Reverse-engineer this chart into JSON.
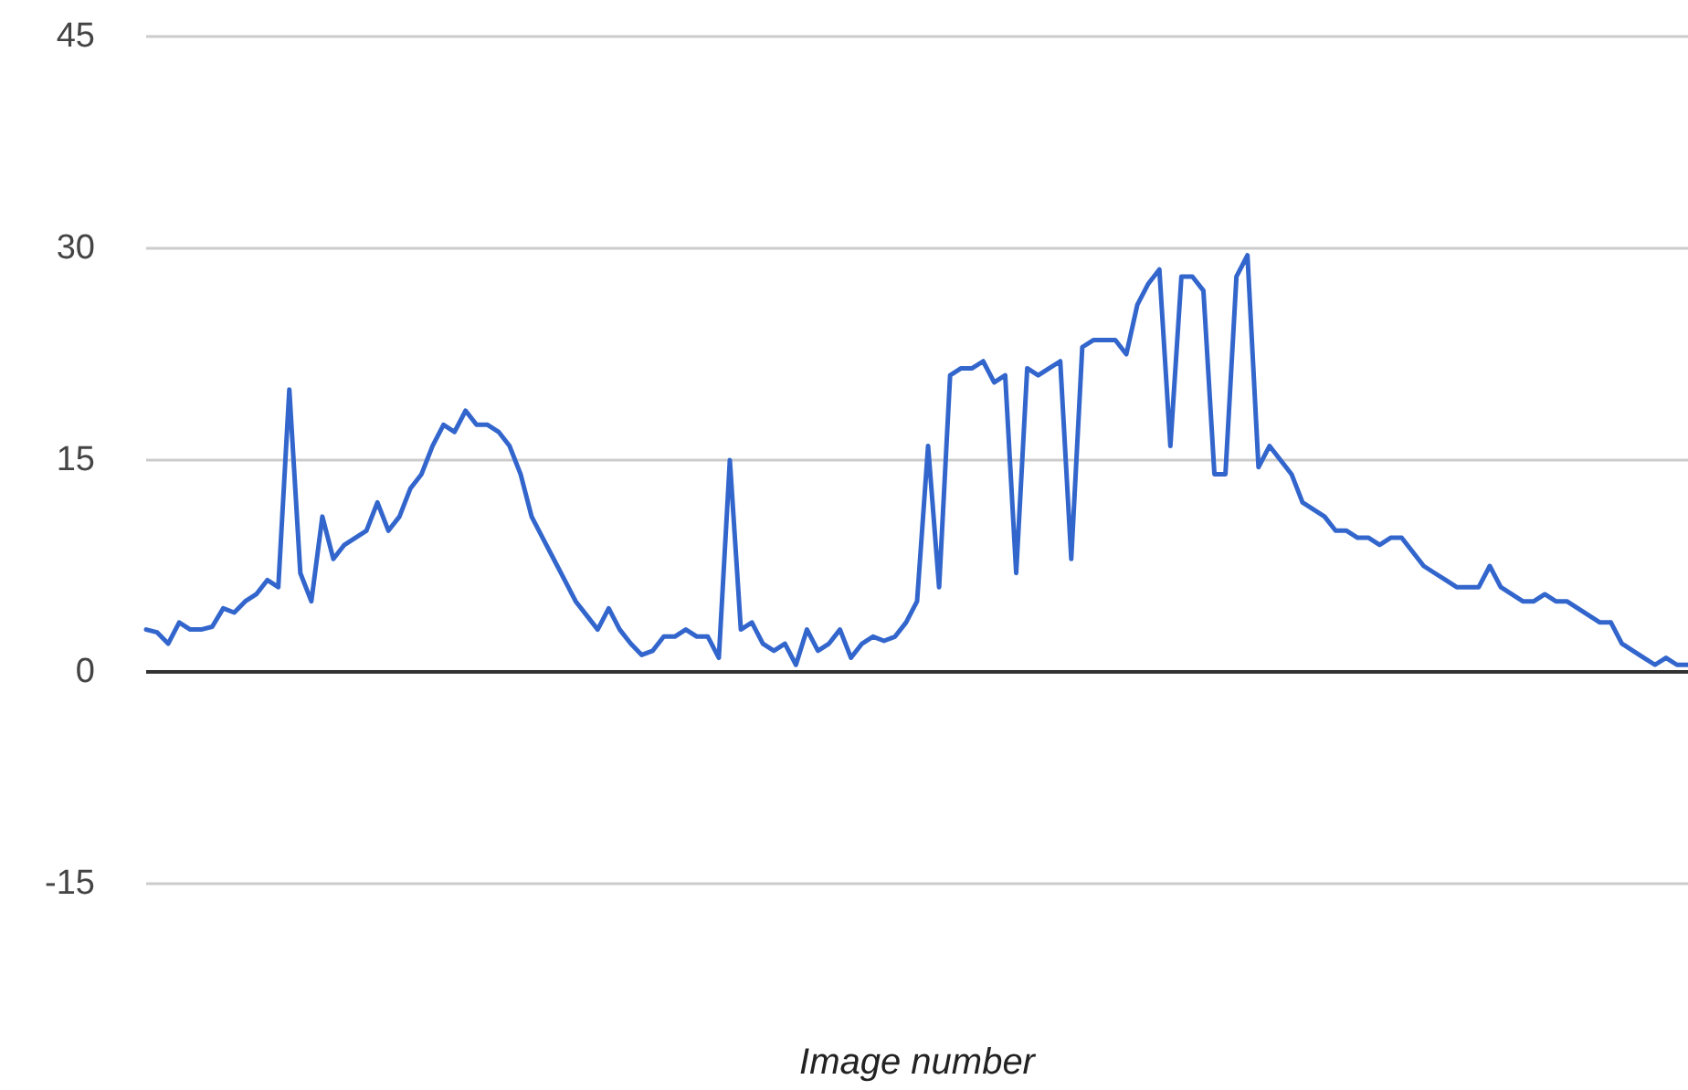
{
  "chart_data": {
    "type": "line",
    "xlabel": "Image number",
    "categories": [
      null,
      null,
      null,
      null,
      null,
      null,
      null,
      null,
      null,
      null,
      null,
      null,
      null,
      null,
      null,
      null,
      null,
      null,
      null,
      null,
      null,
      null,
      null,
      null,
      null,
      null,
      null,
      null,
      null,
      null,
      null,
      null,
      null,
      null,
      null,
      null,
      null,
      null,
      null,
      null,
      null,
      null,
      null,
      null,
      null,
      null,
      null,
      null,
      null,
      null,
      null,
      null,
      null,
      null,
      null,
      null,
      null,
      null,
      null,
      null,
      null,
      null,
      null,
      null,
      null,
      null,
      null,
      null,
      null,
      null,
      null,
      null,
      null,
      null,
      null,
      null,
      null,
      null,
      null,
      null,
      null,
      null,
      null,
      null,
      null,
      null,
      null,
      null,
      null,
      null,
      null,
      null,
      null,
      null,
      null,
      null,
      null,
      null,
      null,
      null,
      null,
      null,
      null,
      null,
      null,
      null,
      null,
      null,
      null,
      null,
      null,
      null,
      null,
      null,
      null,
      null,
      null,
      null,
      null,
      null,
      null,
      null,
      null,
      null,
      null,
      null,
      null,
      null,
      null,
      null,
      null,
      null,
      null,
      null,
      null,
      null,
      null,
      null,
      null,
      null,
      null
    ],
    "series": [
      {
        "color": "#3366cc",
        "values": [
          3,
          2.8,
          2,
          3.5,
          3,
          3,
          3.2,
          4.5,
          4.2,
          5,
          5.5,
          6.5,
          6,
          20,
          7,
          5,
          11,
          8,
          9,
          9.5,
          10,
          12,
          10,
          11,
          13,
          14,
          16,
          17.5,
          17,
          18.5,
          17.5,
          17.5,
          17,
          16,
          14,
          11,
          9.5,
          8,
          6.5,
          5,
          4,
          3,
          4.5,
          3,
          2,
          1.2,
          1.5,
          2.5,
          2.5,
          3,
          2.5,
          2.5,
          1,
          15,
          3,
          3.5,
          2,
          1.5,
          2,
          0.5,
          3,
          1.5,
          2,
          3,
          1,
          2,
          2.5,
          2.2,
          2.5,
          3.5,
          5,
          16,
          6,
          21,
          21.5,
          21.5,
          22,
          20.5,
          21,
          7,
          21.5,
          21,
          21.5,
          22,
          8,
          23,
          23.5,
          23.5,
          23.5,
          22.5,
          26,
          27.5,
          28.5,
          16,
          28,
          28,
          27,
          14,
          14,
          28,
          29.5,
          14.5,
          16,
          15,
          14,
          12,
          11.5,
          11,
          10,
          10,
          9.5,
          9.5,
          9,
          9.5,
          9.5,
          8.5,
          7.5,
          7,
          6.5,
          6,
          6,
          6,
          7.5,
          6,
          5.5,
          5,
          5,
          5.5,
          5,
          5,
          4.5,
          4,
          3.5,
          3.5,
          2,
          1.5,
          1,
          0.5,
          1,
          0.5,
          0.5
        ]
      }
    ],
    "ylim": [
      -15,
      45
    ],
    "yticks": [
      -15,
      0,
      15,
      30,
      45
    ],
    "ref_lines": [
      {
        "axis": "y",
        "value": 0,
        "color": "#333333"
      }
    ],
    "grid": "y",
    "line_style": "solid"
  }
}
